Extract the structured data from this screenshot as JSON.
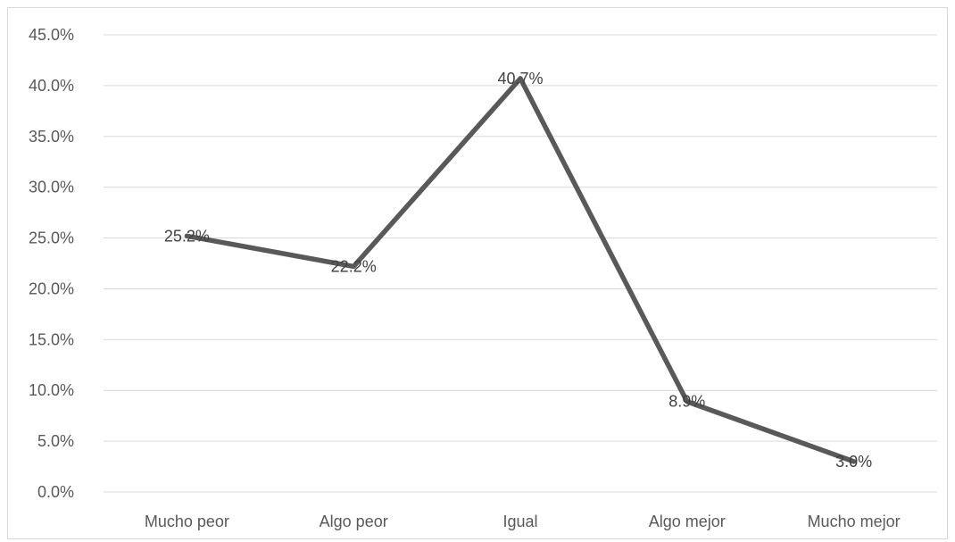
{
  "chart_data": {
    "type": "line",
    "categories": [
      "Mucho peor",
      "Algo peor",
      "Igual",
      "Algo mejor",
      "Mucho mejor"
    ],
    "series": [
      {
        "values": [
          25.2,
          22.2,
          40.7,
          8.9,
          3.0
        ]
      }
    ],
    "data_labels": [
      "25.2%",
      "22.2%",
      "40.7%",
      "8.9%",
      "3.0%"
    ],
    "y_ticks": [
      "0.0%",
      "5.0%",
      "10.0%",
      "15.0%",
      "20.0%",
      "25.0%",
      "30.0%",
      "35.0%",
      "40.0%",
      "45.0%"
    ],
    "ylim": [
      0,
      45
    ],
    "title": "",
    "xlabel": "",
    "ylabel": "",
    "grid": true,
    "legend": "none",
    "colors": {
      "line": "#595959",
      "grid": "#d9d9d9",
      "axis_text": "#595959"
    }
  }
}
